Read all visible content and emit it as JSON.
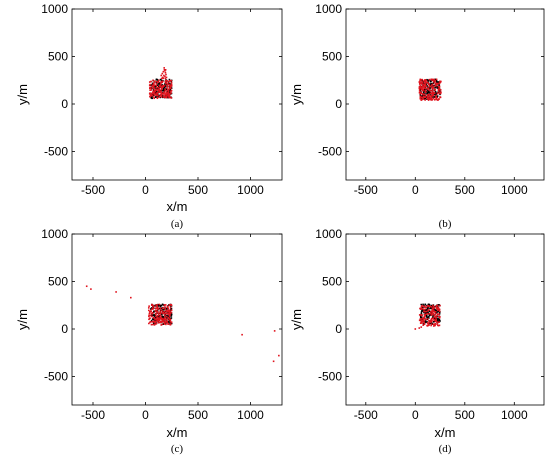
{
  "chart_data": [
    {
      "type": "scatter",
      "caption": "(a)",
      "xlabel": "x/m",
      "ylabel": "y/m",
      "xlim": [
        -700,
        1300
      ],
      "ylim": [
        -800,
        1000
      ],
      "xticks": [
        -500,
        0,
        500,
        1000
      ],
      "yticks": [
        -500,
        0,
        500,
        1000
      ],
      "grid": false,
      "series": [
        {
          "color": "#000000",
          "region": {
            "x": [
              50,
              250
            ],
            "y": [
              60,
              260
            ]
          },
          "count": 160,
          "seed": 11
        },
        {
          "color": "#e0141e",
          "region": {
            "x": [
              40,
              250
            ],
            "y": [
              60,
              250
            ]
          },
          "count": 180,
          "seed": 12,
          "extra_points": [
            [
              150,
              300
            ],
            [
              160,
              320
            ],
            [
              170,
              340
            ],
            [
              180,
              360
            ],
            [
              190,
              330
            ],
            [
              175,
              300
            ],
            [
              165,
              280
            ],
            [
              185,
              290
            ],
            [
              195,
              310
            ],
            [
              200,
              280
            ],
            [
              155,
              270
            ],
            [
              170,
              270
            ],
            [
              190,
              270
            ],
            [
              185,
              350
            ],
            [
              178,
              380
            ],
            [
              192,
              360
            ]
          ]
        }
      ]
    },
    {
      "type": "scatter",
      "caption": "(b)",
      "xlabel": "",
      "ylabel": "y/m",
      "xlim": [
        -700,
        1300
      ],
      "ylim": [
        -800,
        1000
      ],
      "xticks": [
        -500,
        0,
        500,
        1000
      ],
      "yticks": [
        -500,
        0,
        500,
        1000
      ],
      "grid": false,
      "series": [
        {
          "color": "#000000",
          "region": {
            "x": [
              50,
              250
            ],
            "y": [
              50,
              260
            ]
          },
          "count": 170,
          "seed": 21
        },
        {
          "color": "#e0141e",
          "region": {
            "x": [
              40,
              260
            ],
            "y": [
              40,
              260
            ]
          },
          "count": 200,
          "seed": 22,
          "extra_points": []
        }
      ]
    },
    {
      "type": "scatter",
      "caption": "(c)",
      "xlabel": "x/m",
      "ylabel": "y/m",
      "xlim": [
        -700,
        1300
      ],
      "ylim": [
        -800,
        1000
      ],
      "xticks": [
        -500,
        0,
        500,
        1000
      ],
      "yticks": [
        -500,
        0,
        500,
        1000
      ],
      "grid": false,
      "series": [
        {
          "color": "#000000",
          "region": {
            "x": [
              50,
              250
            ],
            "y": [
              50,
              260
            ]
          },
          "count": 170,
          "seed": 31
        },
        {
          "color": "#e0141e",
          "region": {
            "x": [
              30,
              250
            ],
            "y": [
              40,
              260
            ]
          },
          "count": 190,
          "seed": 32,
          "extra_points": [
            [
              -560,
              450
            ],
            [
              -520,
              420
            ],
            [
              -280,
              390
            ],
            [
              -140,
              330
            ],
            [
              920,
              -60
            ],
            [
              1230,
              -20
            ],
            [
              1270,
              -280
            ],
            [
              1220,
              -340
            ]
          ]
        }
      ]
    },
    {
      "type": "scatter",
      "caption": "(d)",
      "xlabel": "x/m",
      "ylabel": "y/m",
      "xlim": [
        -700,
        1300
      ],
      "ylim": [
        -800,
        1000
      ],
      "xticks": [
        -500,
        0,
        500,
        1000
      ],
      "yticks": [
        -500,
        0,
        500,
        1000
      ],
      "grid": false,
      "series": [
        {
          "color": "#000000",
          "region": {
            "x": [
              50,
              250
            ],
            "y": [
              50,
              260
            ]
          },
          "count": 170,
          "seed": 41
        },
        {
          "color": "#e0141e",
          "region": {
            "x": [
              40,
              250
            ],
            "y": [
              30,
              250
            ]
          },
          "count": 150,
          "seed": 42,
          "extra_points": [
            [
              0,
              0
            ],
            [
              40,
              10
            ],
            [
              60,
              20
            ],
            [
              80,
              40
            ]
          ]
        }
      ]
    }
  ]
}
